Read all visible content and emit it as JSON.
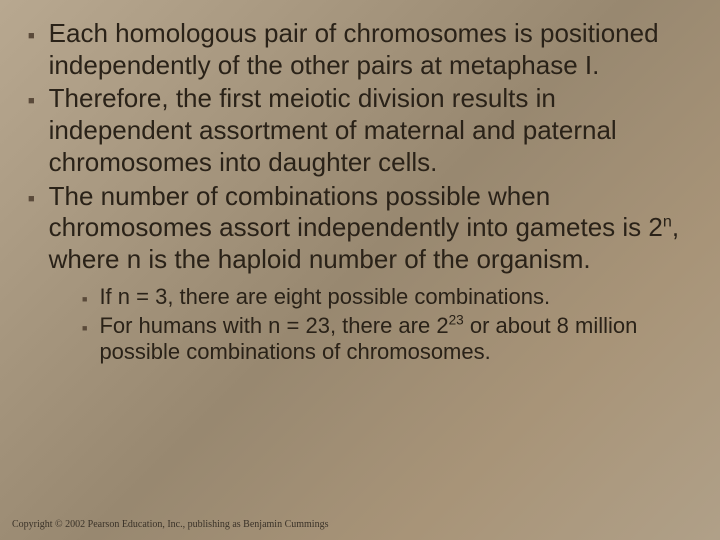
{
  "slide": {
    "background_gradient": [
      "#b8a890",
      "#a89880",
      "#988870",
      "#a89478",
      "#b0a088"
    ],
    "text_color": "#2a2218",
    "bullet_color": "#5a4a3a",
    "main_fontsize": 26,
    "sub_fontsize": 22,
    "copyright_fontsize": 10,
    "bullets": [
      {
        "text": "Each homologous pair of chromosomes is positioned independently of the other pairs at metaphase I."
      },
      {
        "text": "Therefore, the first meiotic division results in independent assortment of maternal and paternal chromosomes into daughter cells."
      },
      {
        "text_pre": "The number of combinations possible when chromosomes assort independently into gametes is 2",
        "exp1": "n",
        "text_post": ", where n is the haploid number of the organism."
      }
    ],
    "sub_bullets": [
      {
        "text": "If n = 3, there are eight possible combinations."
      },
      {
        "text_pre": "For humans with n = 23, there are 2",
        "exp1": "23",
        "text_post": " or about 8 million possible combinations of chromosomes."
      }
    ],
    "copyright": "Copyright © 2002 Pearson Education, Inc., publishing as Benjamin Cummings"
  }
}
